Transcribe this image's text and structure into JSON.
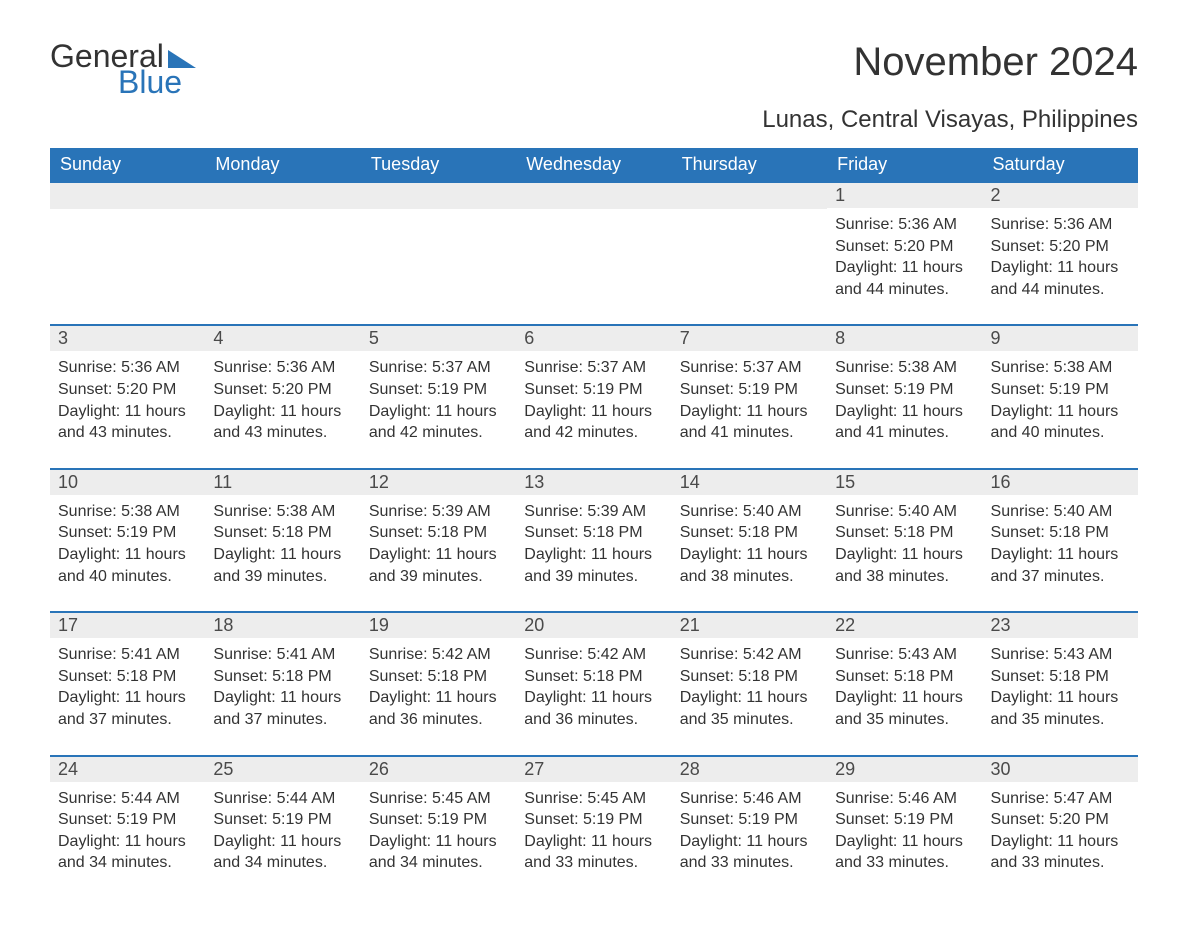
{
  "brand": {
    "word1": "General",
    "word2": "Blue",
    "accent_color": "#2974b8"
  },
  "title": "November 2024",
  "subtitle": "Lunas, Central Visayas, Philippines",
  "colors": {
    "header_bg": "#2974b8",
    "header_text": "#ffffff",
    "daynum_bg": "#ededed",
    "text": "#333333",
    "row_border": "#2974b8",
    "page_bg": "#ffffff"
  },
  "typography": {
    "title_fontsize": 40,
    "subtitle_fontsize": 24,
    "dayhead_fontsize": 18,
    "daynum_fontsize": 18,
    "body_fontsize": 16,
    "font_family": "Arial"
  },
  "layout": {
    "columns": 7,
    "rows": 5,
    "first_weekday": "Sunday"
  },
  "day_headers": [
    "Sunday",
    "Monday",
    "Tuesday",
    "Wednesday",
    "Thursday",
    "Friday",
    "Saturday"
  ],
  "weeks": [
    [
      {
        "empty": true
      },
      {
        "empty": true
      },
      {
        "empty": true
      },
      {
        "empty": true
      },
      {
        "empty": true
      },
      {
        "day": "1",
        "sunrise": "Sunrise: 5:36 AM",
        "sunset": "Sunset: 5:20 PM",
        "daylight": "Daylight: 11 hours and 44 minutes."
      },
      {
        "day": "2",
        "sunrise": "Sunrise: 5:36 AM",
        "sunset": "Sunset: 5:20 PM",
        "daylight": "Daylight: 11 hours and 44 minutes."
      }
    ],
    [
      {
        "day": "3",
        "sunrise": "Sunrise: 5:36 AM",
        "sunset": "Sunset: 5:20 PM",
        "daylight": "Daylight: 11 hours and 43 minutes."
      },
      {
        "day": "4",
        "sunrise": "Sunrise: 5:36 AM",
        "sunset": "Sunset: 5:20 PM",
        "daylight": "Daylight: 11 hours and 43 minutes."
      },
      {
        "day": "5",
        "sunrise": "Sunrise: 5:37 AM",
        "sunset": "Sunset: 5:19 PM",
        "daylight": "Daylight: 11 hours and 42 minutes."
      },
      {
        "day": "6",
        "sunrise": "Sunrise: 5:37 AM",
        "sunset": "Sunset: 5:19 PM",
        "daylight": "Daylight: 11 hours and 42 minutes."
      },
      {
        "day": "7",
        "sunrise": "Sunrise: 5:37 AM",
        "sunset": "Sunset: 5:19 PM",
        "daylight": "Daylight: 11 hours and 41 minutes."
      },
      {
        "day": "8",
        "sunrise": "Sunrise: 5:38 AM",
        "sunset": "Sunset: 5:19 PM",
        "daylight": "Daylight: 11 hours and 41 minutes."
      },
      {
        "day": "9",
        "sunrise": "Sunrise: 5:38 AM",
        "sunset": "Sunset: 5:19 PM",
        "daylight": "Daylight: 11 hours and 40 minutes."
      }
    ],
    [
      {
        "day": "10",
        "sunrise": "Sunrise: 5:38 AM",
        "sunset": "Sunset: 5:19 PM",
        "daylight": "Daylight: 11 hours and 40 minutes."
      },
      {
        "day": "11",
        "sunrise": "Sunrise: 5:38 AM",
        "sunset": "Sunset: 5:18 PM",
        "daylight": "Daylight: 11 hours and 39 minutes."
      },
      {
        "day": "12",
        "sunrise": "Sunrise: 5:39 AM",
        "sunset": "Sunset: 5:18 PM",
        "daylight": "Daylight: 11 hours and 39 minutes."
      },
      {
        "day": "13",
        "sunrise": "Sunrise: 5:39 AM",
        "sunset": "Sunset: 5:18 PM",
        "daylight": "Daylight: 11 hours and 39 minutes."
      },
      {
        "day": "14",
        "sunrise": "Sunrise: 5:40 AM",
        "sunset": "Sunset: 5:18 PM",
        "daylight": "Daylight: 11 hours and 38 minutes."
      },
      {
        "day": "15",
        "sunrise": "Sunrise: 5:40 AM",
        "sunset": "Sunset: 5:18 PM",
        "daylight": "Daylight: 11 hours and 38 minutes."
      },
      {
        "day": "16",
        "sunrise": "Sunrise: 5:40 AM",
        "sunset": "Sunset: 5:18 PM",
        "daylight": "Daylight: 11 hours and 37 minutes."
      }
    ],
    [
      {
        "day": "17",
        "sunrise": "Sunrise: 5:41 AM",
        "sunset": "Sunset: 5:18 PM",
        "daylight": "Daylight: 11 hours and 37 minutes."
      },
      {
        "day": "18",
        "sunrise": "Sunrise: 5:41 AM",
        "sunset": "Sunset: 5:18 PM",
        "daylight": "Daylight: 11 hours and 37 minutes."
      },
      {
        "day": "19",
        "sunrise": "Sunrise: 5:42 AM",
        "sunset": "Sunset: 5:18 PM",
        "daylight": "Daylight: 11 hours and 36 minutes."
      },
      {
        "day": "20",
        "sunrise": "Sunrise: 5:42 AM",
        "sunset": "Sunset: 5:18 PM",
        "daylight": "Daylight: 11 hours and 36 minutes."
      },
      {
        "day": "21",
        "sunrise": "Sunrise: 5:42 AM",
        "sunset": "Sunset: 5:18 PM",
        "daylight": "Daylight: 11 hours and 35 minutes."
      },
      {
        "day": "22",
        "sunrise": "Sunrise: 5:43 AM",
        "sunset": "Sunset: 5:18 PM",
        "daylight": "Daylight: 11 hours and 35 minutes."
      },
      {
        "day": "23",
        "sunrise": "Sunrise: 5:43 AM",
        "sunset": "Sunset: 5:18 PM",
        "daylight": "Daylight: 11 hours and 35 minutes."
      }
    ],
    [
      {
        "day": "24",
        "sunrise": "Sunrise: 5:44 AM",
        "sunset": "Sunset: 5:19 PM",
        "daylight": "Daylight: 11 hours and 34 minutes."
      },
      {
        "day": "25",
        "sunrise": "Sunrise: 5:44 AM",
        "sunset": "Sunset: 5:19 PM",
        "daylight": "Daylight: 11 hours and 34 minutes."
      },
      {
        "day": "26",
        "sunrise": "Sunrise: 5:45 AM",
        "sunset": "Sunset: 5:19 PM",
        "daylight": "Daylight: 11 hours and 34 minutes."
      },
      {
        "day": "27",
        "sunrise": "Sunrise: 5:45 AM",
        "sunset": "Sunset: 5:19 PM",
        "daylight": "Daylight: 11 hours and 33 minutes."
      },
      {
        "day": "28",
        "sunrise": "Sunrise: 5:46 AM",
        "sunset": "Sunset: 5:19 PM",
        "daylight": "Daylight: 11 hours and 33 minutes."
      },
      {
        "day": "29",
        "sunrise": "Sunrise: 5:46 AM",
        "sunset": "Sunset: 5:19 PM",
        "daylight": "Daylight: 11 hours and 33 minutes."
      },
      {
        "day": "30",
        "sunrise": "Sunrise: 5:47 AM",
        "sunset": "Sunset: 5:20 PM",
        "daylight": "Daylight: 11 hours and 33 minutes."
      }
    ]
  ]
}
